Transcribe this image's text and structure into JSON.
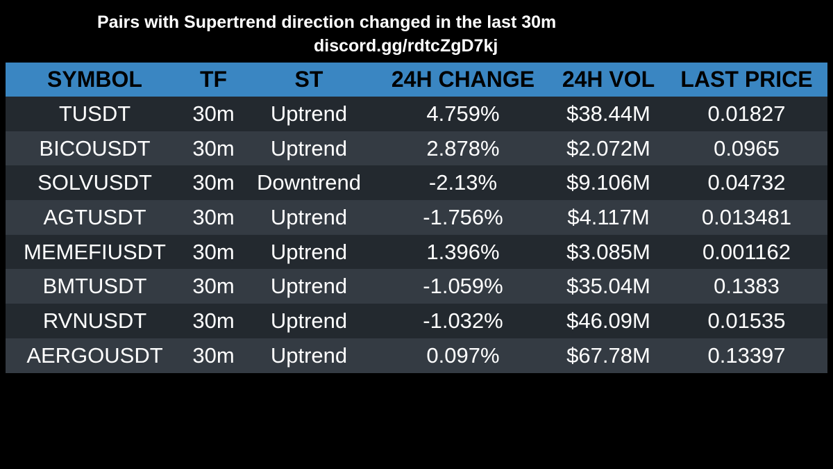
{
  "header": {
    "title": "Pairs with Supertrend direction changed in the last 30m",
    "subtitle": "discord.gg/rdtcZgD7kj"
  },
  "table": {
    "columns": [
      "SYMBOL",
      "TF",
      "ST",
      "24H CHANGE",
      "24H VOL",
      "LAST PRICE"
    ],
    "rows": [
      [
        "TUSDT",
        "30m",
        "Uptrend",
        "4.759%",
        "$38.44M",
        "0.01827"
      ],
      [
        "BICOUSDT",
        "30m",
        "Uptrend",
        "2.878%",
        "$2.072M",
        "0.0965"
      ],
      [
        "SOLVUSDT",
        "30m",
        "Downtrend",
        "-2.13%",
        "$9.106M",
        "0.04732"
      ],
      [
        "AGTUSDT",
        "30m",
        "Uptrend",
        "-1.756%",
        "$4.117M",
        "0.013481"
      ],
      [
        "MEMEFIUSDT",
        "30m",
        "Uptrend",
        "1.396%",
        "$3.085M",
        "0.001162"
      ],
      [
        "BMTUSDT",
        "30m",
        "Uptrend",
        "-1.059%",
        "$35.04M",
        "0.1383"
      ],
      [
        "RVNUSDT",
        "30m",
        "Uptrend",
        "-1.032%",
        "$46.09M",
        "0.01535"
      ],
      [
        "AERGOUSDT",
        "30m",
        "Uptrend",
        "0.097%",
        "$67.78M",
        "0.13397"
      ]
    ]
  }
}
